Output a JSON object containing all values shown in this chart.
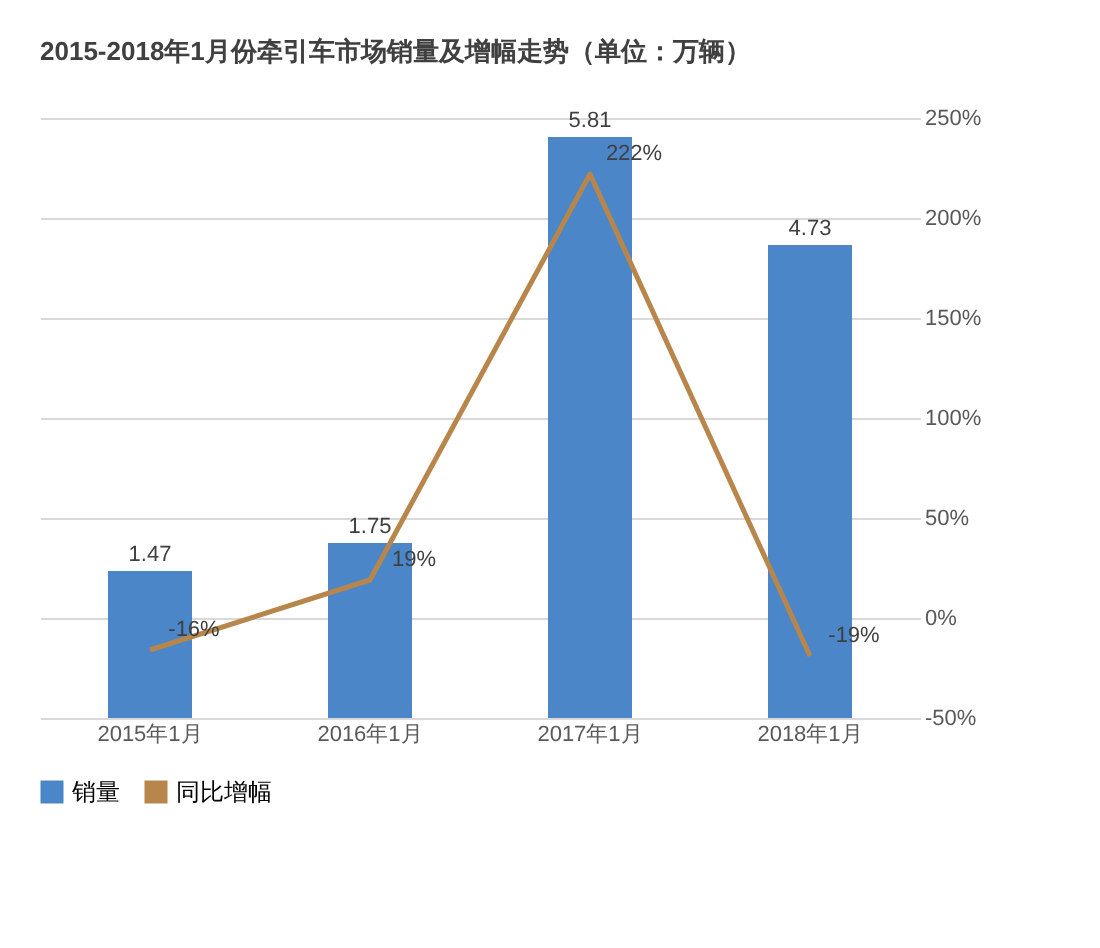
{
  "chart_data": {
    "type": "bar",
    "title": "2015-2018年1月份牵引车市场销量及增幅走势（单位：万辆）",
    "categories": [
      "2015年1月",
      "2016年1月",
      "2017年1月",
      "2018年1月"
    ],
    "series": [
      {
        "name": "销量",
        "color": "#4a86c8",
        "values": [
          1.47,
          1.75,
          5.81,
          4.73
        ],
        "value_labels": [
          "1.47",
          "1.75",
          "5.81",
          "4.73"
        ]
      },
      {
        "name": "同比增幅",
        "type": "line",
        "axis": "y2",
        "color": "#b8864b",
        "values": [
          -16,
          19,
          222,
          -19
        ],
        "value_labels": [
          "-16%",
          "19%",
          "222%",
          "-19%"
        ]
      }
    ],
    "ylim": [
      0,
      6
    ],
    "y2lim": [
      -50,
      250
    ],
    "y2ticks": [
      {
        "value": -50,
        "label": "-50%"
      },
      {
        "value": 0,
        "label": "0%"
      },
      {
        "value": 50,
        "label": "50%"
      },
      {
        "value": 100,
        "label": "100%"
      },
      {
        "value": 150,
        "label": "150%"
      },
      {
        "value": 200,
        "label": "200%"
      },
      {
        "value": 250,
        "label": "250%"
      }
    ],
    "grid": true,
    "legend": "bottom"
  }
}
